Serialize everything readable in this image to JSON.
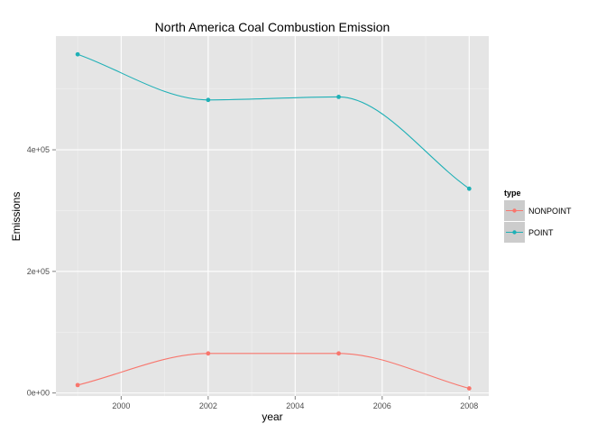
{
  "chart_data": {
    "type": "line",
    "title": "North America Coal Combustion Emission",
    "xlabel": "year",
    "ylabel": "Emissions",
    "x": [
      1999,
      2002,
      2005,
      2008
    ],
    "xlim": [
      1998.5,
      2008.45
    ],
    "ylim": [
      -5000,
      587000
    ],
    "x_ticks": [
      2000,
      2002,
      2004,
      2006,
      2008
    ],
    "x_tick_labels": [
      "2000",
      "2002",
      "2004",
      "2006",
      "2008"
    ],
    "y_ticks": [
      0,
      200000,
      400000
    ],
    "y_tick_labels": [
      "0e+00",
      "2e+05",
      "4e+05"
    ],
    "grid": true,
    "legend": {
      "title": "type",
      "position": "right"
    },
    "series": [
      {
        "name": "NONPOINT",
        "color": "#f8766d",
        "values": [
          13000,
          65000,
          65000,
          7500
        ]
      },
      {
        "name": "POINT",
        "color": "#1fb0b6",
        "values": [
          557000,
          482000,
          487000,
          336000
        ]
      }
    ]
  }
}
